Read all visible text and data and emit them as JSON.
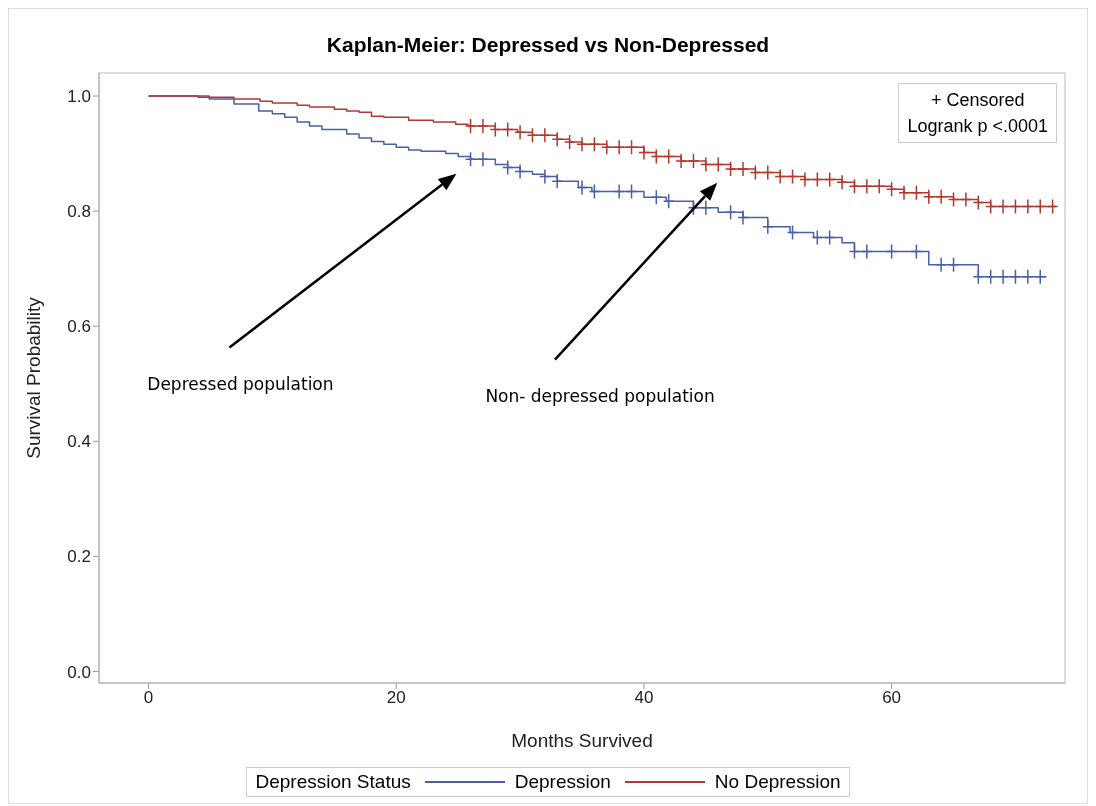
{
  "chart_data": {
    "type": "step",
    "title": "Kaplan-Meier: Depressed vs Non-Depressed",
    "xlabel": "Months Survived",
    "ylabel": "Survival Probability",
    "legend_title": "Depression Status",
    "legend": "bottom",
    "grid": false,
    "xlim": [
      -4,
      74
    ],
    "xticks": [
      0,
      20,
      40,
      60
    ],
    "ylim": [
      -0.02,
      1.04
    ],
    "yticks": [
      {
        "value": 0,
        "label": "0.0"
      },
      {
        "value": 0.2,
        "label": "0.2"
      },
      {
        "value": 0.4,
        "label": "0.4"
      },
      {
        "value": 0.6,
        "label": "0.6"
      },
      {
        "value": 0.8,
        "label": "0.8"
      },
      {
        "value": 1,
        "label": "1.0"
      }
    ],
    "annotations": [
      "+ Censored",
      "Logrank p <.0001",
      "Depressed population",
      "Non- depressed population"
    ],
    "series": [
      {
        "name": "Depression",
        "color": "#4a5fa5",
        "x": [
          0,
          4.9,
          6.9,
          8.9,
          10,
          11,
          12,
          13,
          14,
          16,
          17,
          18,
          19,
          20,
          21,
          22,
          24,
          25,
          26,
          28,
          29,
          30,
          31,
          32,
          33,
          34.7,
          35.8,
          40,
          41.8,
          44,
          46,
          48,
          50,
          51.8,
          53.7,
          56,
          57,
          63,
          67,
          72.5
        ],
        "values": [
          1,
          0.995,
          0.986,
          0.974,
          0.969,
          0.963,
          0.955,
          0.948,
          0.942,
          0.934,
          0.927,
          0.921,
          0.916,
          0.911,
          0.906,
          0.904,
          0.9,
          0.895,
          0.89,
          0.881,
          0.876,
          0.869,
          0.864,
          0.86,
          0.852,
          0.841,
          0.834,
          0.824,
          0.817,
          0.806,
          0.798,
          0.789,
          0.773,
          0.763,
          0.754,
          0.745,
          0.73,
          0.707,
          0.686,
          0.686
        ]
      },
      {
        "name": "No Depression",
        "color": "#b2392f",
        "x": [
          0,
          4,
          6.9,
          9,
          10,
          12,
          13,
          15,
          16,
          17,
          18,
          19,
          21,
          23,
          24.8,
          25.8,
          28,
          29.8,
          31,
          33,
          34,
          35,
          37,
          40,
          41,
          43,
          45,
          47,
          49,
          51,
          53,
          56,
          57,
          60,
          61,
          63,
          65,
          67,
          68,
          73.3
        ],
        "values": [
          1,
          0.998,
          0.995,
          0.991,
          0.988,
          0.984,
          0.981,
          0.977,
          0.974,
          0.972,
          0.965,
          0.963,
          0.958,
          0.955,
          0.951,
          0.948,
          0.942,
          0.937,
          0.932,
          0.925,
          0.92,
          0.916,
          0.911,
          0.902,
          0.895,
          0.887,
          0.881,
          0.873,
          0.867,
          0.86,
          0.855,
          0.85,
          0.843,
          0.838,
          0.832,
          0.825,
          0.82,
          0.815,
          0.808,
          0.808
        ]
      },
      {
        "type": "scatter",
        "marker": "cross",
        "color": "#4a5fa5",
        "x": [
          26,
          27,
          29,
          30,
          32,
          33,
          35,
          36,
          38,
          39,
          41,
          42,
          44,
          45,
          47,
          48,
          50,
          52,
          54,
          55,
          57,
          58,
          60,
          62,
          64,
          65,
          67,
          68,
          69,
          70,
          71,
          72
        ],
        "values": [
          0.89,
          0.89,
          0.876,
          0.869,
          0.86,
          0.852,
          0.841,
          0.834,
          0.834,
          0.834,
          0.824,
          0.817,
          0.806,
          0.806,
          0.798,
          0.789,
          0.773,
          0.763,
          0.754,
          0.754,
          0.73,
          0.73,
          0.73,
          0.73,
          0.707,
          0.707,
          0.686,
          0.686,
          0.686,
          0.686,
          0.686,
          0.686
        ]
      },
      {
        "type": "scatter",
        "marker": "cross",
        "color": "#b2392f",
        "x": [
          26,
          27,
          28,
          29,
          30,
          31,
          32,
          33,
          34,
          35,
          36,
          37,
          38,
          39,
          40,
          41,
          42,
          43,
          44,
          45,
          46,
          47,
          48,
          49,
          50,
          51,
          52,
          53,
          54,
          55,
          56,
          57,
          58,
          59,
          60,
          61,
          62,
          63,
          64,
          65,
          66,
          67,
          68,
          69,
          70,
          71,
          72,
          73
        ],
        "values": [
          0.948,
          0.948,
          0.942,
          0.942,
          0.937,
          0.932,
          0.932,
          0.925,
          0.92,
          0.916,
          0.916,
          0.911,
          0.911,
          0.911,
          0.902,
          0.895,
          0.895,
          0.887,
          0.887,
          0.881,
          0.881,
          0.873,
          0.873,
          0.867,
          0.867,
          0.86,
          0.86,
          0.855,
          0.855,
          0.855,
          0.85,
          0.843,
          0.843,
          0.843,
          0.838,
          0.832,
          0.832,
          0.825,
          0.825,
          0.82,
          0.82,
          0.815,
          0.808,
          0.808,
          0.808,
          0.808,
          0.808,
          0.808
        ]
      }
    ]
  }
}
